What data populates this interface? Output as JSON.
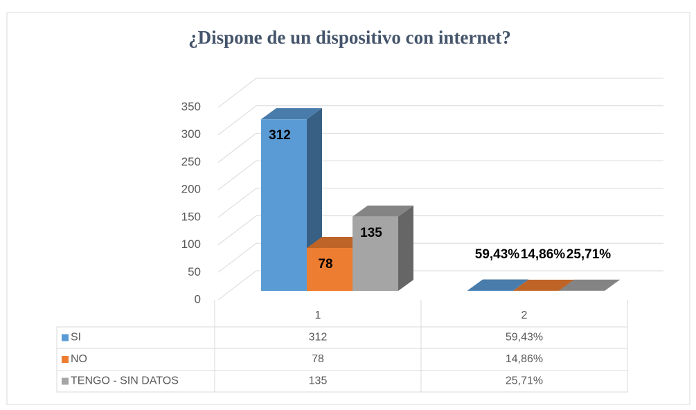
{
  "chart_data": {
    "type": "bar3d",
    "title": "¿Dispone de un dispositivo con internet?",
    "categories": [
      "1",
      "2"
    ],
    "series": [
      {
        "name": "SI",
        "color": "#5b9bd5",
        "values": [
          312,
          0.5943
        ],
        "value_labels": [
          "312",
          "59,43%"
        ]
      },
      {
        "name": "NO",
        "color": "#ed7d31",
        "values": [
          78,
          0.1486
        ],
        "value_labels": [
          "78",
          "14,86%"
        ]
      },
      {
        "name": "TENGO - SIN DATOS",
        "color": "#a5a5a5",
        "values": [
          135,
          0.2571
        ],
        "value_labels": [
          "135",
          "25,71%"
        ]
      }
    ],
    "ylim": [
      0,
      350
    ],
    "yticks": [
      0,
      50,
      100,
      150,
      200,
      250,
      300,
      350
    ],
    "grid": true,
    "legend": "data-table"
  }
}
